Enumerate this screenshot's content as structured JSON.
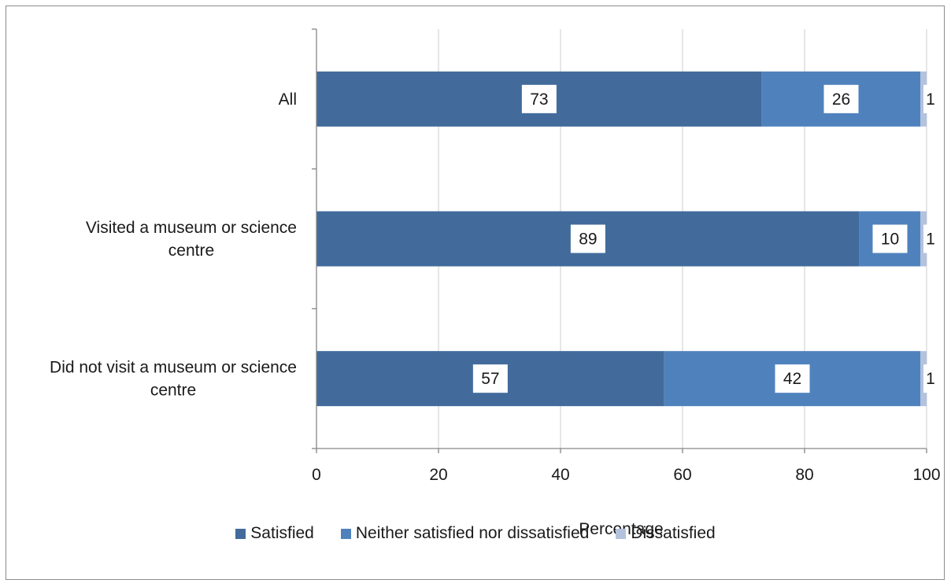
{
  "chart_data": {
    "type": "bar",
    "orientation": "horizontal",
    "stacked": true,
    "categories": [
      "All",
      "Visited a museum or science centre",
      "Did not visit a museum or science centre"
    ],
    "category_lines": [
      [
        "All"
      ],
      [
        "Visited a museum or science",
        "centre"
      ],
      [
        "Did not visit a museum or science",
        "centre"
      ]
    ],
    "series": [
      {
        "name": "Satisfied",
        "values": [
          73,
          89,
          57
        ],
        "color": "#426b9c"
      },
      {
        "name": "Neither satisfied nor dissatisfied",
        "values": [
          26,
          10,
          42
        ],
        "color": "#4f82bd"
      },
      {
        "name": "Dissatisfied",
        "values": [
          1,
          1,
          1
        ],
        "color": "#b3c2dd"
      }
    ],
    "data_labels": [
      [
        "73",
        "89",
        "57"
      ],
      [
        "26",
        "10",
        "42"
      ],
      [
        "1",
        "1",
        "1"
      ]
    ],
    "xlabel": "Percentage",
    "ylabel": "",
    "title": "",
    "xlim": [
      0,
      100
    ],
    "xticks": [
      0,
      20,
      40,
      60,
      80,
      100
    ],
    "xtick_labels": [
      "0",
      "20",
      "40",
      "60",
      "80",
      "100"
    ],
    "grid": "vertical",
    "legend_position": "bottom"
  }
}
